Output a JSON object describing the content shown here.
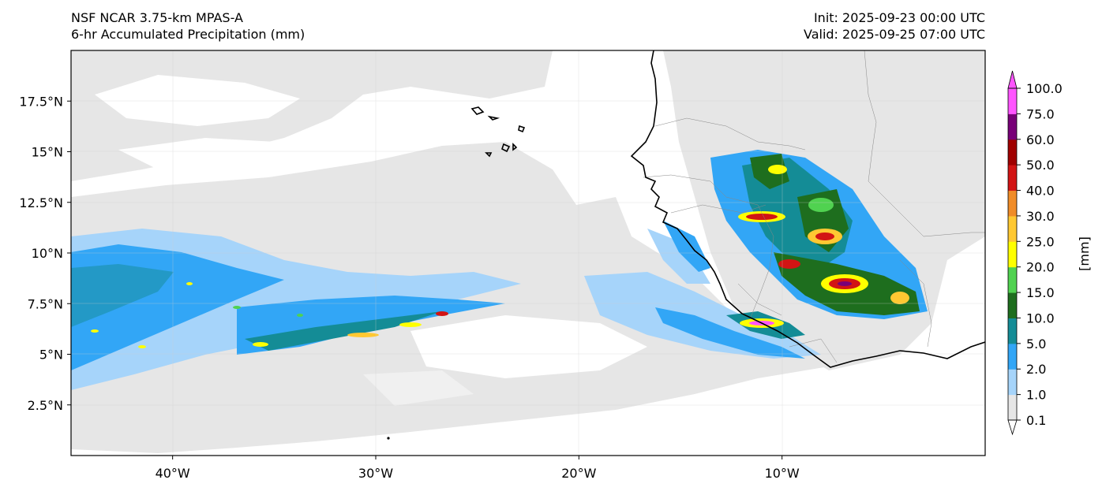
{
  "header": {
    "model": "NSF NCAR 3.75-km MPAS-A",
    "field": "6-hr Accumulated Precipitation (mm)",
    "init": "Init: 2025-09-23 00:00 UTC",
    "valid": "Valid: 2025-09-25 07:00 UTC"
  },
  "map": {
    "lon_range": [
      -45,
      0
    ],
    "lat_range": [
      0,
      20
    ],
    "x_ticks": [
      {
        "lon": -40,
        "label": "40°W"
      },
      {
        "lon": -30,
        "label": "30°W"
      },
      {
        "lon": -20,
        "label": "20°W"
      },
      {
        "lon": -10,
        "label": "10°W"
      }
    ],
    "y_ticks": [
      {
        "lat": 2.5,
        "label": "2.5°N"
      },
      {
        "lat": 5,
        "label": "5°N"
      },
      {
        "lat": 7.5,
        "label": "7.5°N"
      },
      {
        "lat": 10,
        "label": "10°N"
      },
      {
        "lat": 12.5,
        "label": "12.5°N"
      },
      {
        "lat": 15,
        "label": "15°N"
      },
      {
        "lat": 17.5,
        "label": "17.5°N"
      }
    ]
  },
  "colorbar": {
    "unit_label": "[mm]",
    "levels": [
      "0.1",
      "1.0",
      "2.0",
      "5.0",
      "10.0",
      "15.0",
      "20.0",
      "25.0",
      "30.0",
      "40.0",
      "50.0",
      "60.0",
      "75.0",
      "100.0"
    ],
    "colors": [
      "#e6e6e6",
      "#a6d4fa",
      "#32a6f6",
      "#148c96",
      "#1e6e1e",
      "#50d250",
      "#ffff00",
      "#ffc832",
      "#f08c28",
      "#d21414",
      "#a00000",
      "#780078",
      "#ff55ff"
    ]
  }
}
